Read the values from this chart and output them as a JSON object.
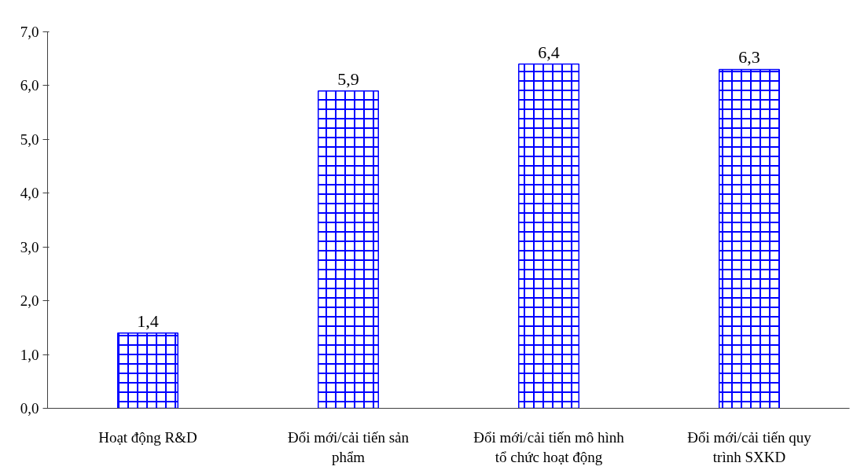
{
  "chart_data": {
    "type": "bar",
    "categories": [
      "Hoạt động R&D",
      "Đổi mới/cải tiến sản phẩm",
      "Đổi mới/cải tiến mô hình tổ chức hoạt động",
      "Đổi mới/cải tiến quy trình SXKD"
    ],
    "values": [
      1.4,
      5.9,
      6.4,
      6.3
    ],
    "value_labels": [
      "1,4",
      "5,9",
      "6,4",
      "6,3"
    ],
    "color": "#0000ff",
    "ylim": [
      0,
      7
    ],
    "yticks": [
      {
        "value": 0,
        "label": "0,0"
      },
      {
        "value": 1,
        "label": "1,0"
      },
      {
        "value": 2,
        "label": "2,0"
      },
      {
        "value": 3,
        "label": "3,0"
      },
      {
        "value": 4,
        "label": "4,0"
      },
      {
        "value": 5,
        "label": "5,0"
      },
      {
        "value": 6,
        "label": "6,0"
      },
      {
        "value": 7,
        "label": "7,0"
      }
    ],
    "grid": false
  }
}
